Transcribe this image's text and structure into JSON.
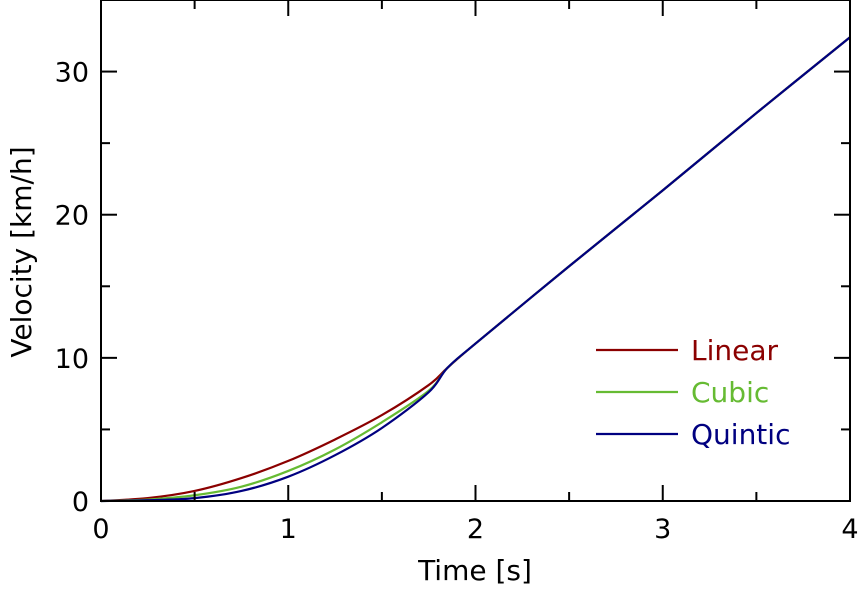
{
  "chart_data": {
    "type": "line",
    "title": "",
    "xlabel": "Time [s]",
    "ylabel": "Velocity [km/h]",
    "xlim": [
      0,
      4
    ],
    "ylim": [
      0,
      35
    ],
    "xticks": [
      0,
      1,
      2,
      3,
      4
    ],
    "xtick_labels": [
      "0",
      "1",
      "2",
      "3",
      "4"
    ],
    "yticks": [
      0,
      10,
      20,
      30
    ],
    "ytick_labels": [
      "0",
      "10",
      "20",
      "30"
    ],
    "grid": false,
    "legend_position": "lower-right",
    "x": [
      0,
      0.25,
      0.5,
      0.75,
      1.0,
      1.25,
      1.5,
      1.75,
      1.85,
      2.0,
      2.5,
      3.0,
      3.5,
      4.0
    ],
    "series": [
      {
        "name": "Linear",
        "color": "#8b0000",
        "values": [
          0,
          0.2,
          0.7,
          1.6,
          2.8,
          4.3,
          6.0,
          8.1,
          9.3,
          11.0,
          16.4,
          21.7,
          27.1,
          32.4
        ]
      },
      {
        "name": "Cubic",
        "color": "#66bb33",
        "values": [
          0,
          0.1,
          0.4,
          1.0,
          2.1,
          3.6,
          5.5,
          7.7,
          9.3,
          11.0,
          16.4,
          21.7,
          27.1,
          32.4
        ]
      },
      {
        "name": "Quintic",
        "color": "#000080",
        "values": [
          0,
          0.05,
          0.2,
          0.7,
          1.7,
          3.2,
          5.1,
          7.6,
          9.3,
          11.0,
          16.4,
          21.7,
          27.1,
          32.4
        ]
      }
    ]
  }
}
